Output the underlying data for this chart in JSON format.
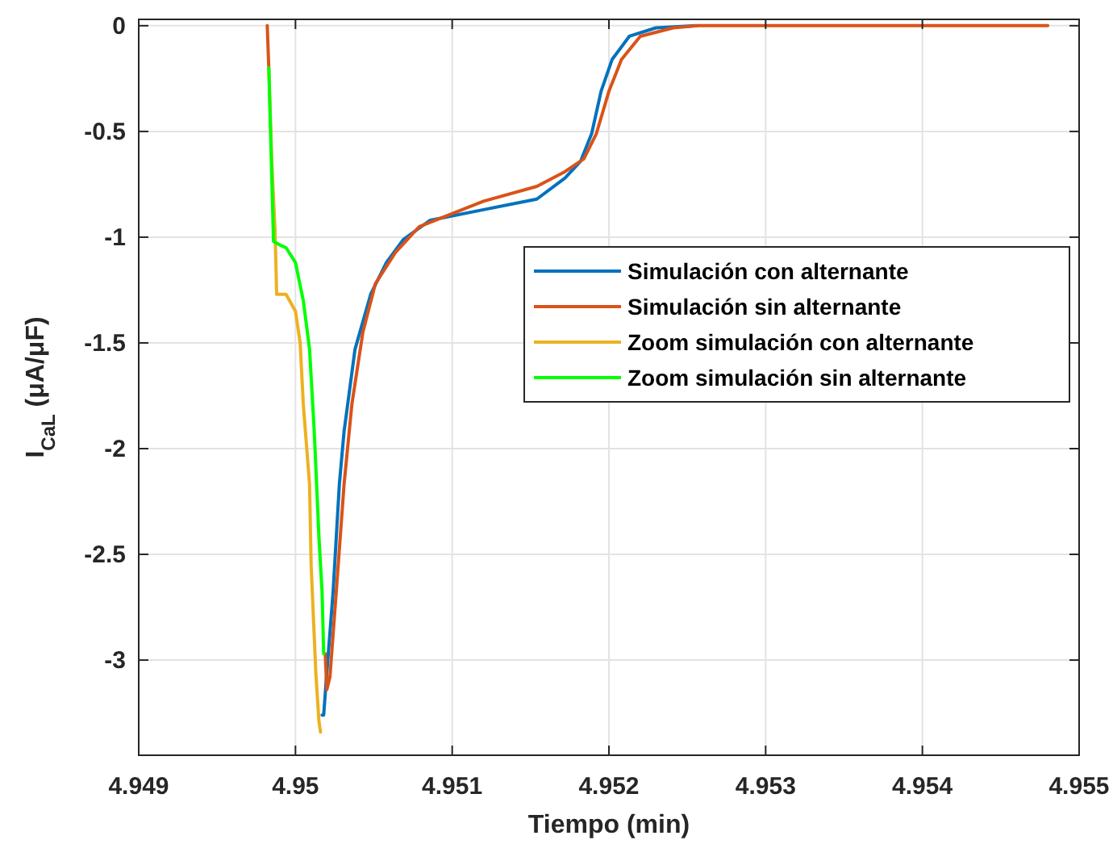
{
  "chart_data": {
    "type": "line",
    "xlabel": "Tiempo (min)",
    "ylabel": "I$_{CaL}$ (μA/μF)",
    "xlim": [
      4.949,
      4.955
    ],
    "xticks": [
      4.949,
      4.95,
      4.951,
      4.952,
      4.953,
      4.954,
      4.955
    ],
    "ylim": [
      -3.45,
      0.03
    ],
    "yticks": [
      -3,
      -2.5,
      -2,
      -1.5,
      -1,
      -0.5,
      0
    ],
    "grid": true,
    "legend": "right",
    "line_style": "solid",
    "marker": "none",
    "series": [
      {
        "name": "Simulación con alternante",
        "color": "#0072bd",
        "x": [
          4.95017,
          4.95018,
          4.9502,
          4.95024,
          4.95028,
          4.95031,
          4.95038,
          4.95048,
          4.95058,
          4.95069,
          4.95086,
          4.9512,
          4.95154,
          4.95172,
          4.95182,
          4.95189,
          4.95195,
          4.95202,
          4.95213,
          4.9523,
          4.95256
        ],
        "values": [
          -3.26,
          -3.26,
          -3.06,
          -2.68,
          -2.17,
          -1.92,
          -1.53,
          -1.27,
          -1.12,
          -1.01,
          -0.92,
          -0.87,
          -0.82,
          -0.72,
          -0.64,
          -0.51,
          -0.31,
          -0.16,
          -0.05,
          -0.01,
          0
        ]
      },
      {
        "name": "Simulación sin alternante",
        "color": "#d95319",
        "x": [
          4.94982,
          4.94983,
          4.94985,
          4.95019,
          4.9502,
          4.95022,
          4.95026,
          4.95031,
          4.95036,
          4.95043,
          4.95051,
          4.95064,
          4.95079,
          4.9512,
          4.95154,
          4.95172,
          4.95184,
          4.95192,
          4.952,
          4.95208,
          4.9522,
          4.95241,
          4.95257,
          4.9548
        ],
        "values": [
          0,
          -0.2,
          null,
          -2.97,
          -3.14,
          -3.08,
          -2.68,
          -2.17,
          -1.79,
          -1.45,
          -1.22,
          -1.07,
          -0.95,
          -0.83,
          -0.76,
          -0.69,
          -0.63,
          -0.51,
          -0.31,
          -0.16,
          -0.05,
          -0.01,
          0,
          0
        ]
      },
      {
        "name": "Zoom simulación con alternante",
        "color": "#edb120",
        "x": [
          4.94983,
          4.94985,
          4.94987,
          4.94988,
          4.94994,
          4.95,
          4.95003,
          4.95005,
          4.95009,
          4.9501,
          4.95013,
          4.95015,
          4.95016
        ],
        "values": [
          -0.2,
          -0.66,
          -0.97,
          -1.27,
          -1.27,
          -1.35,
          -1.5,
          -1.79,
          -2.17,
          -2.55,
          -3.06,
          -3.29,
          -3.34
        ]
      },
      {
        "name": "Zoom simulación sin alternante",
        "color": "#00ff00",
        "x": [
          4.94983,
          4.94986,
          4.94991,
          4.94994,
          4.95,
          4.95005,
          4.95009,
          4.95012,
          4.95015,
          4.95017,
          4.95018
        ],
        "values": [
          -0.2,
          -1.02,
          -1.04,
          -1.05,
          -1.12,
          -1.3,
          -1.53,
          -1.92,
          -2.42,
          -2.68,
          -2.97
        ]
      }
    ]
  }
}
